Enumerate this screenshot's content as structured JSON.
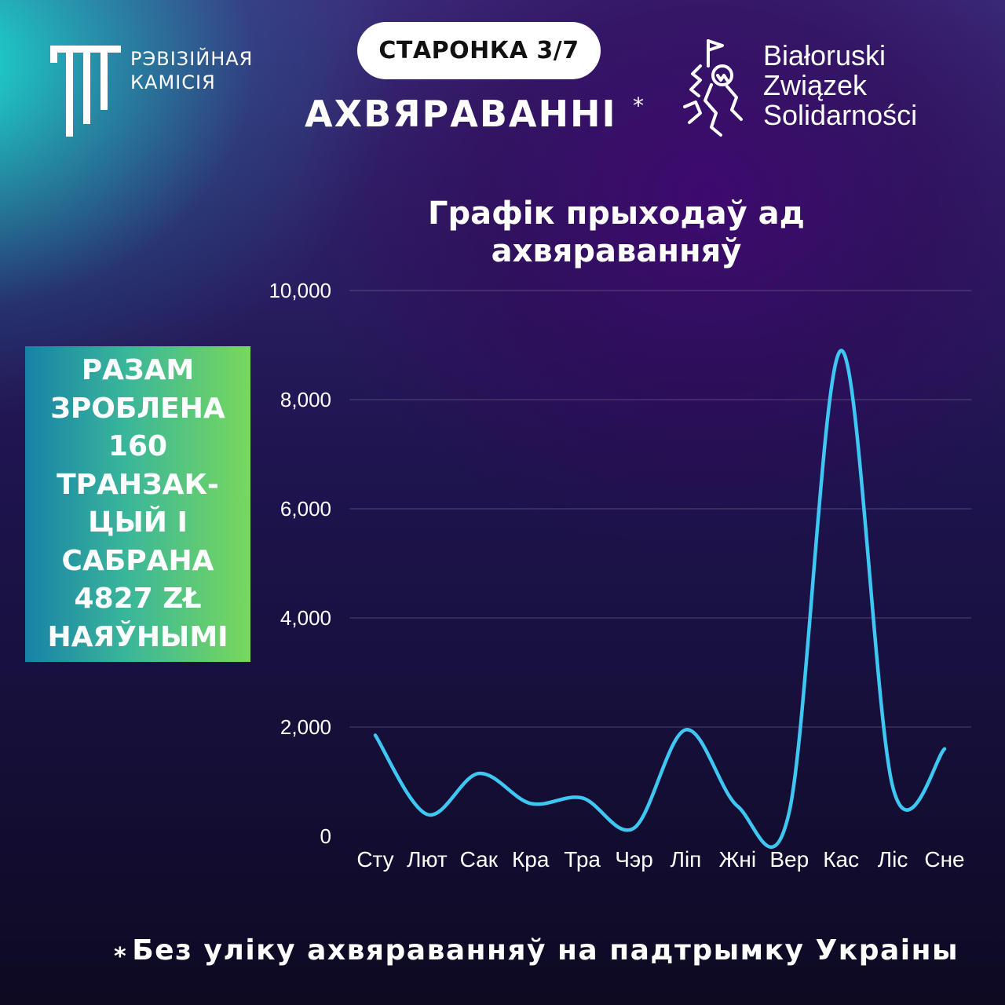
{
  "header": {
    "logo_left_text": "РЭВІЗІЙНАЯ\nКАМІСІЯ",
    "page_label": "СТАРОНКА 3/7",
    "heading": "АХВЯРАВАННІ",
    "heading_mark": "*",
    "logo_right_lines": [
      "Białoruski",
      "Związek",
      "Solidarności"
    ]
  },
  "summary_text": "РАЗАМ\nЗРОБЛЕНА\n160\nТРАНЗАК-\nЦЫЙ І\nСАБРАНА\n4827 ZŁ\nНАЯЎНЫМІ",
  "chart_data": {
    "type": "line",
    "title": "Графік прыходаў ад\nахвяраванняў",
    "categories": [
      "Сту",
      "Лют",
      "Сак",
      "Кра",
      "Тра",
      "Чэр",
      "Ліп",
      "Жні",
      "Вер",
      "Кас",
      "Ліс",
      "Сне"
    ],
    "series": [
      {
        "values": [
          1850,
          400,
          1150,
          600,
          700,
          150,
          1950,
          550,
          450,
          8900,
          900,
          1600
        ]
      }
    ],
    "yticks": [
      "10,000",
      "8,000",
      "6,000",
      "4,000",
      "2,000",
      "0"
    ],
    "ylim": [
      0,
      10000
    ],
    "grid": true,
    "line_color": "#3ec7f2"
  },
  "footer": {
    "mark": "*",
    "text": "Без уліку ахвяраванняў на падтрымку Украіны"
  }
}
